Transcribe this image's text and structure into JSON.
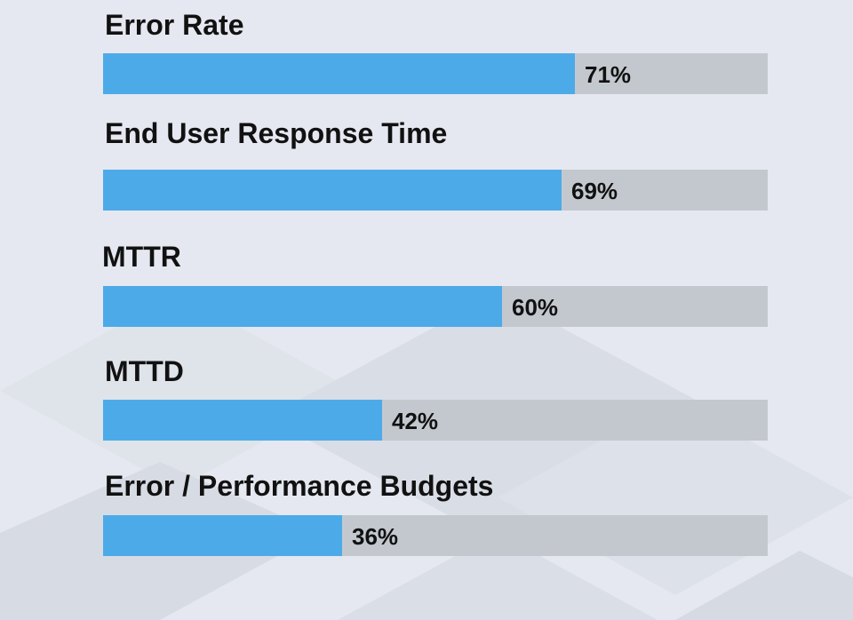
{
  "chart_data": {
    "type": "bar",
    "orientation": "horizontal",
    "categories": [
      "Error Rate",
      "End User Response Time",
      "MTTR",
      "MTTD",
      "Error / Performance Budgets"
    ],
    "values": [
      71,
      69,
      60,
      42,
      36
    ],
    "value_labels": [
      "71%",
      "69%",
      "60%",
      "42%",
      "36%"
    ],
    "xlim": [
      0,
      100
    ],
    "grid": false,
    "legend": "none"
  },
  "colors": {
    "bar_fill": "#4daae8",
    "bar_track": "#c3c8cf",
    "background": "#e5e8f0",
    "text": "#111111"
  }
}
